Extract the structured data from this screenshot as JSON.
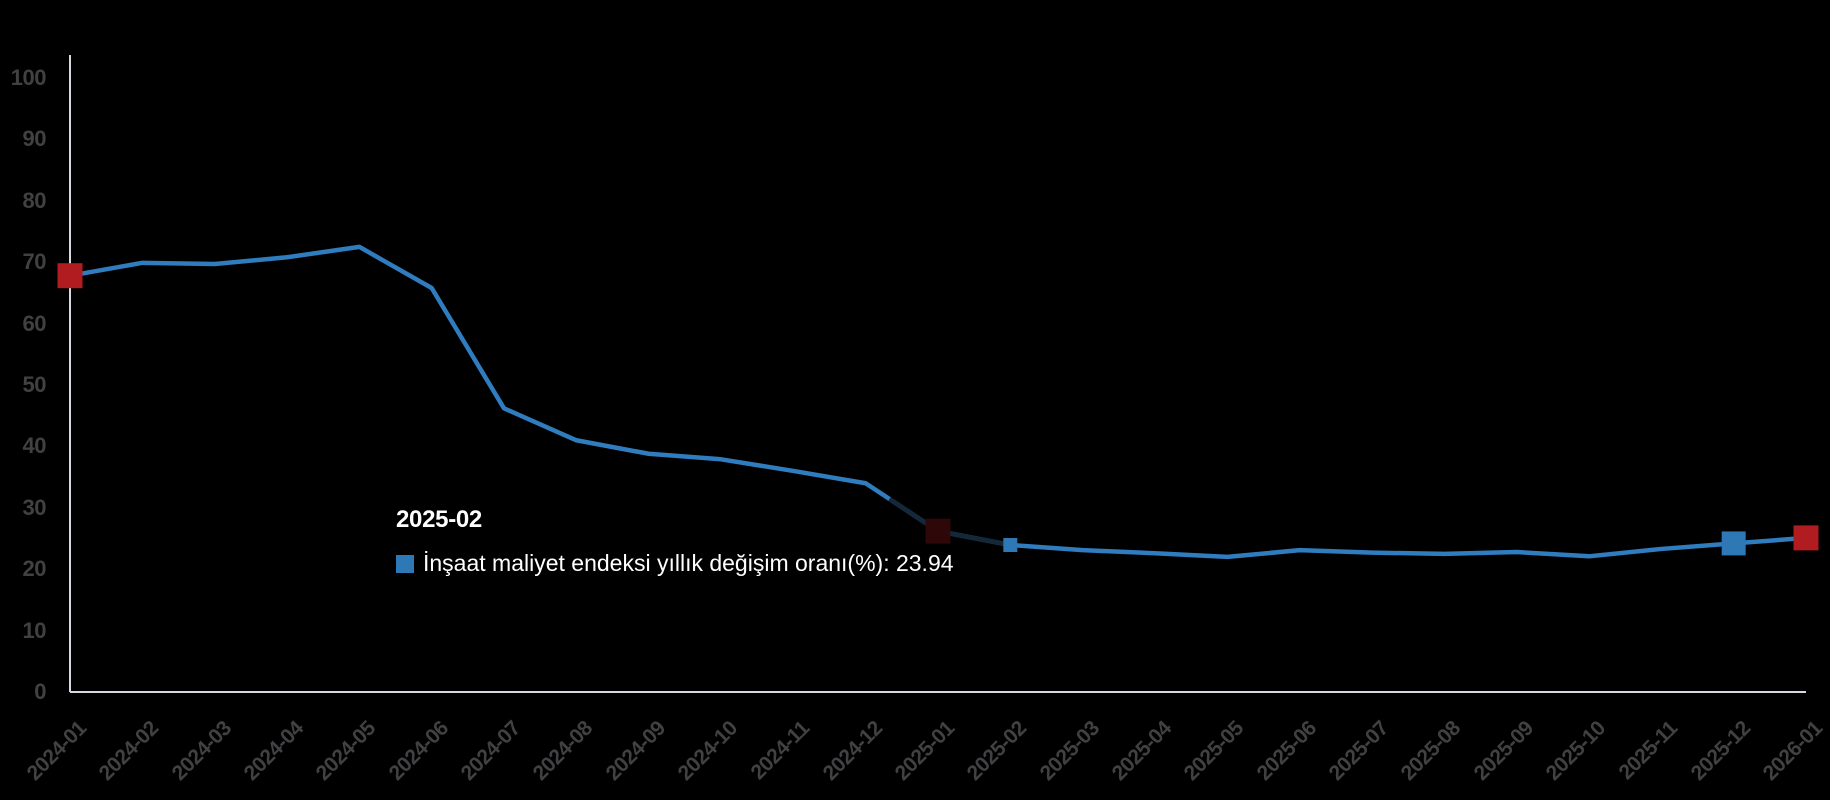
{
  "colors": {
    "background": "#000000",
    "axis_line": "#d8d8e2",
    "tick_label": "#414143",
    "line": "#2f7cbf",
    "line_dimmed": "#152839",
    "marker_red": "#b01c1f",
    "marker_red_dimmed": "#2e0709",
    "marker_blue": "#2e78b6",
    "tooltip_text": "#ffffff"
  },
  "tooltip": {
    "title": "2025-02",
    "series_label": "İnşaat maliyet endeksi yıllık değişim oranı(%)",
    "separator": ": ",
    "value": "23.94",
    "swatch_color": "#2e78b6"
  },
  "chart_data": {
    "type": "line",
    "title": "",
    "xlabel": "",
    "ylabel": "",
    "ylim": [
      0,
      100
    ],
    "yticks": [
      0,
      10,
      20,
      30,
      40,
      50,
      60,
      70,
      80,
      90,
      100
    ],
    "grid": false,
    "legend_position": "tooltip-inline",
    "x": [
      "2024-01",
      "2024-02",
      "2024-03",
      "2024-04",
      "2024-05",
      "2024-06",
      "2024-07",
      "2024-08",
      "2024-09",
      "2024-10",
      "2024-11",
      "2024-12",
      "2025-01",
      "2025-02",
      "2025-03",
      "2025-04",
      "2025-05",
      "2025-06",
      "2025-07",
      "2025-08",
      "2025-09",
      "2025-10",
      "2025-11",
      "2025-12",
      "2026-01"
    ],
    "series": [
      {
        "name": "İnşaat maliyet endeksi yıllık değişim oranı(%)",
        "values": [
          67.8,
          69.9,
          69.7,
          70.8,
          72.5,
          65.8,
          46.2,
          41.0,
          38.8,
          37.9,
          36.0,
          34.0,
          26.2,
          23.94,
          23.1,
          22.6,
          22.0,
          23.1,
          22.7,
          22.5,
          22.8,
          22.1,
          23.3,
          24.2,
          25.1
        ]
      }
    ],
    "highlighted_point": {
      "x": "2025-02",
      "value": 23.94
    },
    "markers": [
      {
        "x": "2024-01",
        "color": "red",
        "size": 25
      },
      {
        "x": "2025-01",
        "color": "red-dimmed",
        "size": 25
      },
      {
        "x": "2025-02",
        "color": "blue",
        "size": 14
      },
      {
        "x": "2025-12",
        "color": "blue",
        "size": 24
      },
      {
        "x": "2026-01",
        "color": "red",
        "size": 25
      }
    ],
    "dimmed_segment": {
      "from": "2024-12",
      "to": "2025-02"
    }
  }
}
